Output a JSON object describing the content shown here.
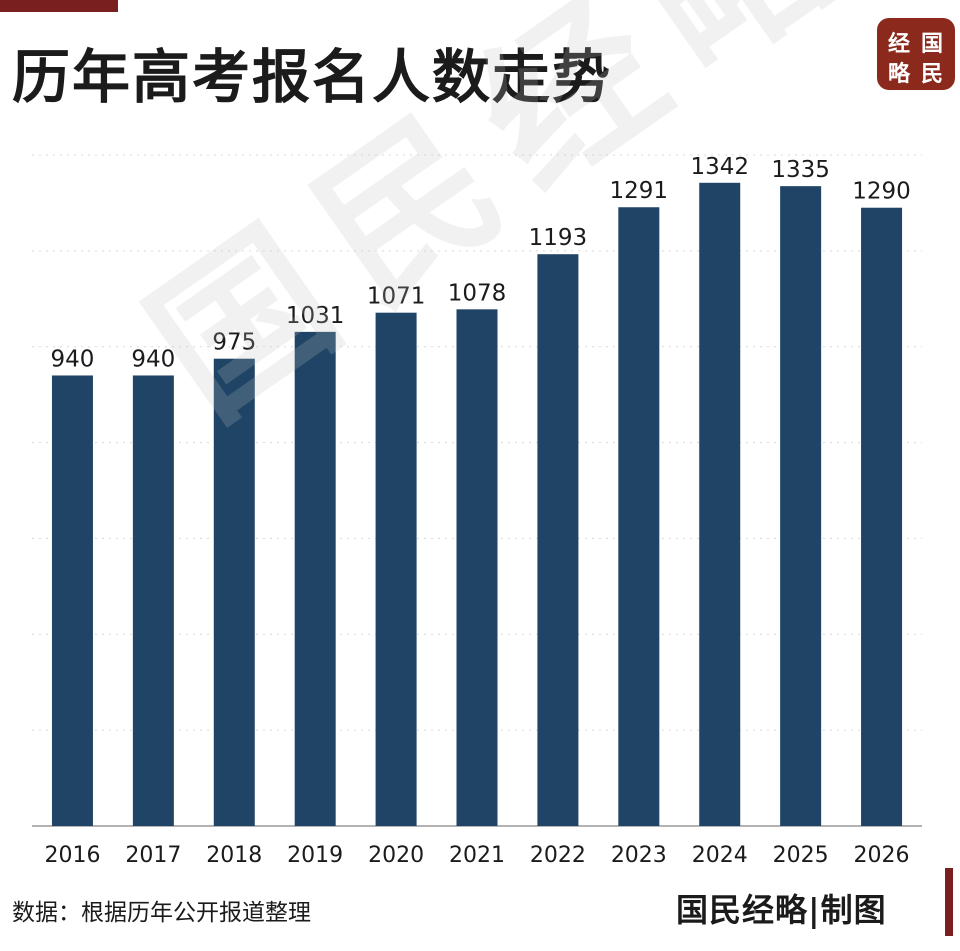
{
  "header": {
    "title": "历年高考报名人数走势"
  },
  "logo": {
    "chars": [
      "经",
      "国",
      "略",
      "民"
    ],
    "color": "#8b2a1c"
  },
  "watermark": {
    "text": "国民经略"
  },
  "footer": {
    "source": "数据：根据历年公开报道整理",
    "credit": "国民经略|制图"
  },
  "chart_data": {
    "type": "bar",
    "categories": [
      "2016",
      "2017",
      "2018",
      "2019",
      "2020",
      "2021",
      "2022",
      "2023",
      "2024",
      "2025",
      "2026"
    ],
    "values": [
      940,
      940,
      975,
      1031,
      1071,
      1078,
      1193,
      1291,
      1342,
      1335,
      1290
    ],
    "title": "历年高考报名人数走势",
    "xlabel": "",
    "ylabel": "",
    "ylim": [
      0,
      1400
    ],
    "grid": true,
    "bar_color": "#1f4466",
    "grid_color": "#d9d9d9"
  }
}
